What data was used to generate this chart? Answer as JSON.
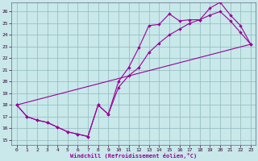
{
  "xlabel": "Windchill (Refroidissement éolien,°C)",
  "bg_color": "#c8e8ea",
  "grid_color": "#99c0c4",
  "line_color": "#990099",
  "xlim": [
    -0.5,
    23.5
  ],
  "ylim": [
    14.6,
    26.8
  ],
  "xticks": [
    0,
    1,
    2,
    3,
    4,
    5,
    6,
    7,
    8,
    9,
    10,
    11,
    12,
    13,
    14,
    15,
    16,
    17,
    18,
    19,
    20,
    21,
    22,
    23
  ],
  "yticks": [
    15,
    16,
    17,
    18,
    19,
    20,
    21,
    22,
    23,
    24,
    25,
    26
  ],
  "line1_x": [
    0,
    1,
    2,
    3,
    4,
    5,
    6,
    7,
    8,
    9,
    10,
    11,
    12,
    13,
    14,
    15,
    16,
    17,
    18,
    19,
    20,
    21,
    22,
    23
  ],
  "line1_y": [
    18.0,
    17.0,
    16.7,
    16.5,
    16.1,
    15.7,
    15.5,
    15.3,
    18.0,
    17.2,
    20.0,
    21.2,
    22.9,
    24.8,
    24.9,
    25.8,
    25.2,
    25.3,
    25.3,
    26.3,
    26.8,
    25.7,
    24.8,
    23.2
  ],
  "line2_x": [
    0,
    1,
    2,
    3,
    4,
    5,
    6,
    7,
    8,
    9,
    10,
    11,
    12,
    13,
    14,
    15,
    16,
    17,
    18,
    19,
    20,
    21,
    22,
    23
  ],
  "line2_y": [
    18.0,
    17.0,
    16.7,
    16.5,
    16.1,
    15.7,
    15.5,
    15.3,
    18.0,
    17.2,
    19.5,
    20.5,
    21.2,
    22.5,
    23.3,
    24.0,
    24.5,
    25.0,
    25.3,
    25.7,
    26.0,
    25.2,
    24.2,
    23.2
  ],
  "line3_x": [
    0,
    23
  ],
  "line3_y": [
    18.0,
    23.2
  ]
}
